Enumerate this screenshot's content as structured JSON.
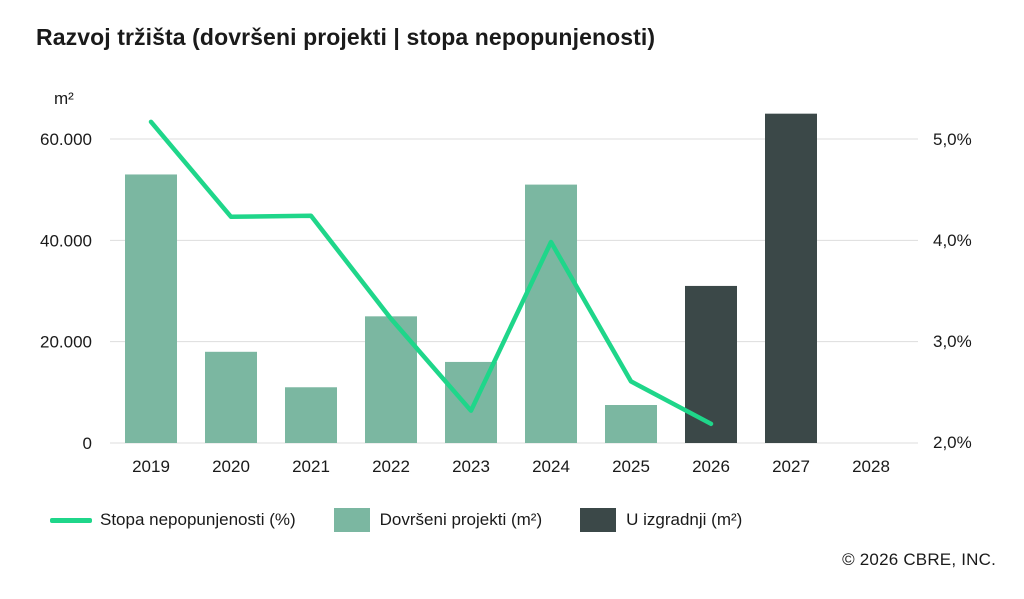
{
  "title": "Razvoj tržišta (dovršeni projekti | stopa nepopunjenosti)",
  "copyright": "© 2026 CBRE, INC.",
  "colors": {
    "vacancy_line": "#1fd68a",
    "completed_bar": "#7bb7a1",
    "construction_bar": "#3b4848",
    "grid": "#dddddd"
  },
  "chart_data": {
    "type": "bar",
    "categories": [
      "2019",
      "2020",
      "2021",
      "2022",
      "2023",
      "2024",
      "2025",
      "2026",
      "2027",
      "2028"
    ],
    "y_left": {
      "unit": "m²",
      "ylim": [
        0,
        60000
      ],
      "ticks": [
        0,
        20000,
        40000,
        60000
      ],
      "tick_labels": [
        "0",
        "20.000",
        "40.000",
        "60.000"
      ]
    },
    "y_right": {
      "ylim": [
        2.0,
        5.0
      ],
      "ticks": [
        2.0,
        3.0,
        4.0,
        5.0
      ],
      "tick_labels": [
        "2,0%",
        "3,0%",
        "4,0%",
        "5,0%"
      ]
    },
    "series": [
      {
        "name": "Dovršeni projekti (m²)",
        "type": "bar",
        "axis": "left",
        "values": [
          53000,
          18000,
          11000,
          25000,
          16000,
          51000,
          7500,
          null,
          null,
          null
        ]
      },
      {
        "name": "U izgradnji (m²)",
        "type": "bar",
        "axis": "left",
        "values": [
          null,
          null,
          null,
          null,
          null,
          null,
          null,
          31000,
          65000,
          null
        ]
      },
      {
        "name": "Stopa nepopunjenosti (%)",
        "type": "line",
        "axis": "right",
        "values": [
          5.17,
          4.23,
          4.24,
          3.22,
          2.31,
          3.98,
          2.6,
          2.18,
          null,
          null
        ]
      }
    ],
    "grid": true,
    "legend_position": "bottom-left"
  }
}
